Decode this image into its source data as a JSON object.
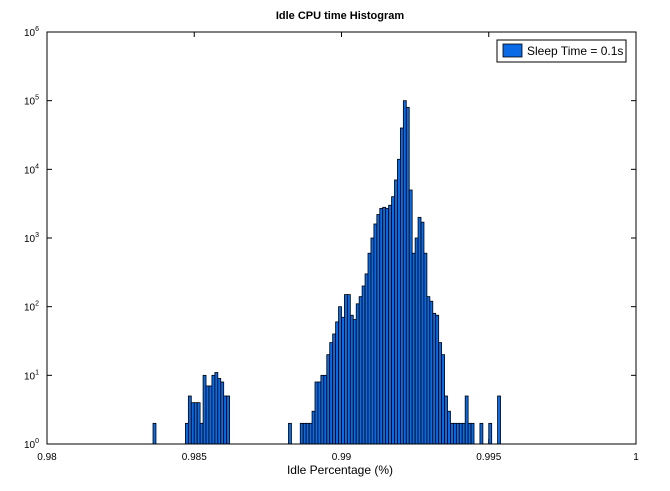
{
  "chart_data": {
    "type": "bar",
    "title": "Idle CPU time Histogram",
    "xlabel": "Idle Percentage (%)",
    "ylabel": "",
    "xlim": [
      0.98,
      1.0
    ],
    "ylim": [
      1,
      1000000
    ],
    "yscale": "log",
    "xticks": [
      0.98,
      0.985,
      0.99,
      0.995,
      1.0
    ],
    "xtick_labels": [
      "0.98",
      "0.985",
      "0.99",
      "0.995",
      "1"
    ],
    "yticks": [
      1,
      10,
      100,
      1000,
      10000,
      100000,
      1000000
    ],
    "ytick_base": "10",
    "ytick_exponents": [
      "0",
      "1",
      "2",
      "3",
      "4",
      "5",
      "6"
    ],
    "legend": "top-right",
    "colors": {
      "bar": "#0b6ae6",
      "edge": "#000000"
    },
    "bin_width": 0.0001,
    "series": [
      {
        "name": "Sleep Time = 0.1s",
        "x": [
          0.98365,
          0.98475,
          0.98485,
          0.98495,
          0.98505,
          0.98515,
          0.98525,
          0.98535,
          0.98545,
          0.98555,
          0.98565,
          0.98575,
          0.98585,
          0.98595,
          0.98605,
          0.98615,
          0.98625,
          0.98825,
          0.98865,
          0.98875,
          0.98885,
          0.98895,
          0.98905,
          0.98915,
          0.98925,
          0.98935,
          0.98945,
          0.98955,
          0.98965,
          0.98975,
          0.98985,
          0.98995,
          0.99005,
          0.99015,
          0.99025,
          0.99035,
          0.99045,
          0.99055,
          0.99065,
          0.99075,
          0.99085,
          0.99095,
          0.99105,
          0.99115,
          0.99125,
          0.99135,
          0.99145,
          0.99155,
          0.99165,
          0.99175,
          0.99185,
          0.99195,
          0.99205,
          0.99215,
          0.99225,
          0.99235,
          0.99245,
          0.99255,
          0.99265,
          0.99275,
          0.99285,
          0.99295,
          0.99305,
          0.99315,
          0.99325,
          0.99335,
          0.99345,
          0.99355,
          0.99365,
          0.99375,
          0.99385,
          0.99395,
          0.99405,
          0.99415,
          0.99425,
          0.99435,
          0.99445,
          0.99475,
          0.99505,
          0.99535
        ],
        "values": [
          2,
          2,
          5,
          4,
          4,
          4,
          2,
          10,
          7,
          7,
          10,
          11,
          9,
          8,
          5,
          5,
          0,
          2,
          2,
          2,
          2,
          2,
          3,
          8,
          8,
          10,
          10,
          20,
          30,
          40,
          60,
          100,
          70,
          150,
          150,
          75,
          65,
          110,
          140,
          200,
          300,
          600,
          1000,
          1600,
          2200,
          2700,
          2800,
          2700,
          3000,
          4000,
          7000,
          14000,
          40000,
          100000,
          80000,
          5000,
          600,
          1000,
          2000,
          1700,
          600,
          140,
          120,
          80,
          75,
          30,
          20,
          5,
          3,
          2,
          2,
          2,
          2,
          2,
          5,
          2,
          2,
          2,
          2,
          5
        ]
      }
    ]
  }
}
